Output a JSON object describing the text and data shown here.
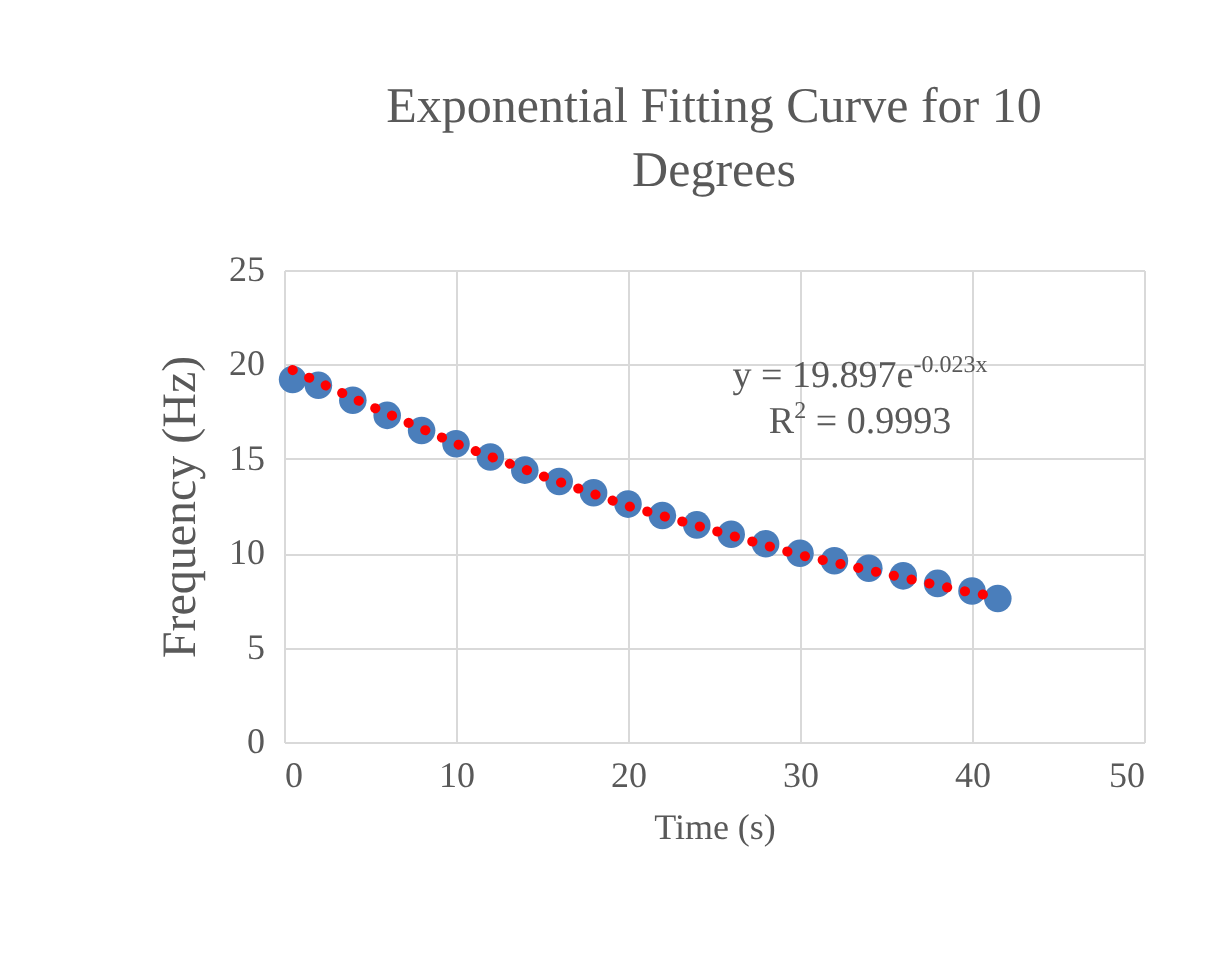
{
  "chart_data": {
    "type": "scatter",
    "title": "Exponential Fitting Curve for 10 Degrees",
    "xlabel": "Time (s)",
    "ylabel": "Frequency (Hz)",
    "annotations": [
      "y = 19.897e$^{-0.023x}$",
      "R$^{2}$ = 0.9993"
    ],
    "xlim": [
      0,
      50
    ],
    "xticks": [
      0,
      10,
      20,
      30,
      40,
      50
    ],
    "ylim": [
      0,
      25
    ],
    "yticks": [
      0,
      5,
      10,
      15,
      20,
      25
    ],
    "grid": true,
    "series": [
      {
        "marker": "circle",
        "color": "#4a7ebb",
        "x": [
          0.5,
          2,
          4,
          6,
          8,
          10,
          12,
          14,
          16,
          18,
          20,
          22,
          24,
          26,
          28,
          30,
          32,
          34,
          36,
          38,
          40,
          41.5
        ],
        "values": [
          19.2,
          18.9,
          18.1,
          17.3,
          16.5,
          15.8,
          15.1,
          14.4,
          13.8,
          13.2,
          12.6,
          12.0,
          11.5,
          11.0,
          10.5,
          10.0,
          9.6,
          9.2,
          8.8,
          8.4,
          8.0,
          7.6
        ]
      },
      {
        "type": "line",
        "marker": "none",
        "line_style": "dotted",
        "color": "#ff0000",
        "x": [
          0.5,
          5,
          10,
          15,
          20,
          25,
          30,
          35,
          40,
          41.5
        ],
        "values": [
          19.7,
          17.8,
          15.8,
          14.1,
          12.5,
          11.2,
          9.9,
          8.9,
          7.9,
          7.7
        ]
      }
    ]
  }
}
